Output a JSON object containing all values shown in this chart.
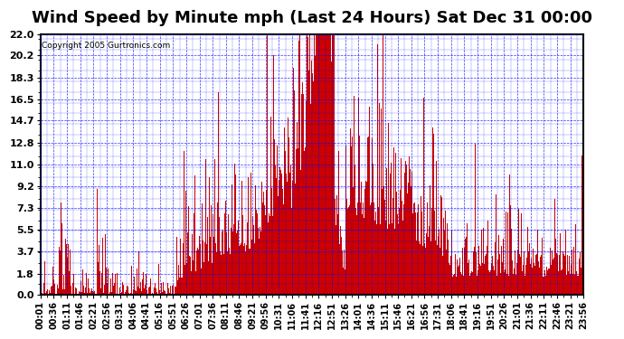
{
  "title": "Wind Speed by Minute mph (Last 24 Hours) Sat Dec 31 00:00",
  "copyright": "Copyright 2005 Gurtronics.com",
  "yticks": [
    0.0,
    1.8,
    3.7,
    5.5,
    7.3,
    9.2,
    11.0,
    12.8,
    14.7,
    16.5,
    18.3,
    20.2,
    22.0
  ],
  "ylim": [
    0.0,
    22.0
  ],
  "bar_color": "#cc0000",
  "bg_color": "#ffffff",
  "plot_bg": "#ffffff",
  "grid_color": "#0000ff",
  "border_color": "#000000",
  "title_fontsize": 13,
  "x_label_fontsize": 7,
  "y_label_fontsize": 8,
  "xtick_labels": [
    "00:01",
    "00:36",
    "01:11",
    "01:46",
    "02:21",
    "02:56",
    "03:31",
    "04:06",
    "04:41",
    "05:16",
    "05:51",
    "06:26",
    "07:01",
    "07:36",
    "08:11",
    "08:46",
    "09:21",
    "09:56",
    "10:31",
    "11:06",
    "11:41",
    "12:16",
    "12:51",
    "13:26",
    "14:01",
    "14:36",
    "15:11",
    "15:46",
    "16:21",
    "16:56",
    "17:31",
    "18:06",
    "18:41",
    "19:16",
    "19:51",
    "20:26",
    "21:01",
    "21:36",
    "22:11",
    "22:46",
    "23:21",
    "23:56"
  ]
}
